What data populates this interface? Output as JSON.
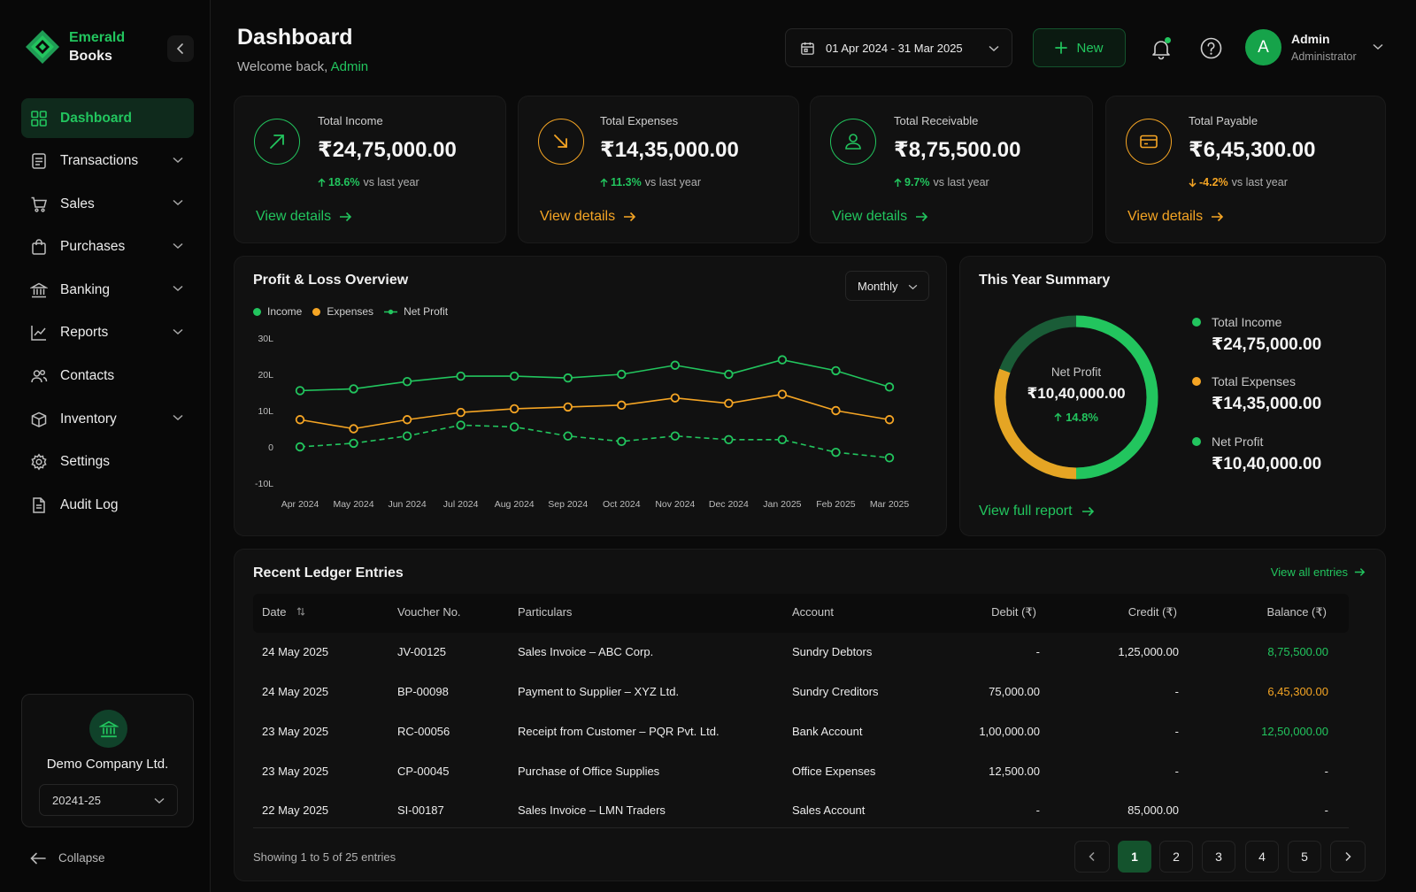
{
  "brand": {
    "line1": "Emerald",
    "line2": "Books"
  },
  "sidebar": {
    "items": [
      {
        "label": "Dashboard",
        "icon": "grid-icon",
        "active": true
      },
      {
        "label": "Transactions",
        "icon": "receipt-icon",
        "expandable": true
      },
      {
        "label": "Sales",
        "icon": "cart-icon",
        "expandable": true
      },
      {
        "label": "Purchases",
        "icon": "bag-icon",
        "expandable": true
      },
      {
        "label": "Banking",
        "icon": "bank-icon",
        "expandable": true
      },
      {
        "label": "Reports",
        "icon": "chart-line-icon",
        "expandable": true
      },
      {
        "label": "Contacts",
        "icon": "users-icon"
      },
      {
        "label": "Inventory",
        "icon": "box-icon",
        "expandable": true
      },
      {
        "label": "Settings",
        "icon": "gear-icon"
      },
      {
        "label": "Audit Log",
        "icon": "document-icon"
      }
    ],
    "company_name": "Demo Company Ltd.",
    "fiscal_year": "20241-25",
    "collapse_label": "Collapse"
  },
  "header": {
    "title": "Dashboard",
    "welcome_prefix": "Welcome back, ",
    "welcome_user": "Admin",
    "date_range": "01 Apr 2024 - 31 Mar 2025",
    "new_label": "New",
    "avatar_initial": "A",
    "user_name": "Admin",
    "user_role": "Administrator"
  },
  "kpis": [
    {
      "title": "Total Income",
      "value": "₹24,75,000.00",
      "delta": "18.6%",
      "delta_dir": "up",
      "suffix": "vs last year",
      "link": "View details",
      "accent": "#22c55e",
      "icon": "arrow-up-right-icon"
    },
    {
      "title": "Total Expenses",
      "value": "₹14,35,000.00",
      "delta": "11.3%",
      "delta_dir": "up",
      "suffix": "vs last year",
      "link": "View details",
      "accent": "#f5a524",
      "icon": "arrow-down-right-icon"
    },
    {
      "title": "Total Receivable",
      "value": "₹8,75,500.00",
      "delta": "9.7%",
      "delta_dir": "up",
      "suffix": "vs last year",
      "link": "View details",
      "accent": "#22c55e",
      "icon": "user-icon"
    },
    {
      "title": "Total Payable",
      "value": "₹6,45,300.00",
      "delta": "-4.2%",
      "delta_dir": "down",
      "suffix": "vs last year",
      "link": "View details",
      "accent": "#f5a524",
      "icon": "card-icon"
    }
  ],
  "pl": {
    "title": "Profit & Loss Overview",
    "period": "Monthly"
  },
  "chart_data": {
    "type": "line",
    "categories": [
      "Apr 2024",
      "May 2024",
      "Jun 2024",
      "Jul 2024",
      "Aug 2024",
      "Sep 2024",
      "Oct 2024",
      "Nov 2024",
      "Dec 2024",
      "Jan 2025",
      "Feb 2025",
      "Mar 2025"
    ],
    "series": [
      {
        "name": "Income",
        "color": "#22c55e",
        "values": [
          15.5,
          16,
          18,
          19.5,
          19.5,
          19,
          20,
          22.5,
          20,
          24,
          21,
          16.5
        ]
      },
      {
        "name": "Expenses",
        "color": "#f5a524",
        "values": [
          7.5,
          5,
          7.5,
          9.5,
          10.5,
          11,
          11.5,
          13.5,
          12,
          14.5,
          10,
          7.5
        ]
      },
      {
        "name": "Net Profit",
        "color": "#22c55e",
        "dashed": true,
        "values": [
          0,
          1,
          3,
          6,
          5.5,
          3,
          1.5,
          3,
          2,
          2,
          -1.5,
          -3
        ]
      }
    ],
    "yticks": [
      "30L",
      "20L",
      "10L",
      "0",
      "-10L"
    ],
    "ylim": [
      -10,
      30
    ],
    "grid": false,
    "legend": "top-left"
  },
  "summary": {
    "title": "This Year Summary",
    "center_label": "Net Profit",
    "center_value": "₹10,40,000.00",
    "center_delta": "14.8%",
    "items": [
      {
        "label": "Total Income",
        "value": "₹24,75,000.00",
        "color": "#22c55e"
      },
      {
        "label": "Total Expenses",
        "value": "₹14,35,000.00",
        "color": "#f5a524"
      },
      {
        "label": "Net Profit",
        "value": "₹10,40,000.00",
        "color": "#22c55e"
      }
    ],
    "expense_share": 0.42,
    "link": "View full report"
  },
  "ledger": {
    "title": "Recent Ledger Entries",
    "view_all": "View all entries",
    "columns": [
      "Date",
      "Voucher No.",
      "Particulars",
      "Account",
      "Debit (₹)",
      "Credit (₹)",
      "Balance (₹)"
    ],
    "rows": [
      {
        "date": "24 May 2025",
        "voucher": "JV-00125",
        "particulars": "Sales Invoice – ABC Corp.",
        "account": "Sundry Debtors",
        "debit": "-",
        "credit": "1,25,000.00",
        "balance": "8,75,500.00",
        "balance_color": "#22c55e"
      },
      {
        "date": "24 May 2025",
        "voucher": "BP-00098",
        "particulars": "Payment to Supplier – XYZ Ltd.",
        "account": "Sundry Creditors",
        "debit": "75,000.00",
        "credit": "-",
        "balance": "6,45,300.00",
        "balance_color": "#f5a524"
      },
      {
        "date": "23 May 2025",
        "voucher": "RC-00056",
        "particulars": "Receipt from Customer – PQR Pvt. Ltd.",
        "account": "Bank Account",
        "debit": "1,00,000.00",
        "credit": "-",
        "balance": "12,50,000.00",
        "balance_color": "#22c55e"
      },
      {
        "date": "23 May 2025",
        "voucher": "CP-00045",
        "particulars": "Purchase of Office Supplies",
        "account": "Office Expenses",
        "debit": "12,500.00",
        "credit": "-",
        "balance": "-",
        "balance_color": "#e8e8e8"
      },
      {
        "date": "22 May 2025",
        "voucher": "SI-00187",
        "particulars": "Sales Invoice – LMN Traders",
        "account": "Sales Account",
        "debit": "-",
        "credit": "85,000.00",
        "balance": "-",
        "balance_color": "#e8e8e8"
      }
    ],
    "showing": "Showing 1 to 5 of 25 entries",
    "pages": [
      "1",
      "2",
      "3",
      "4",
      "5"
    ],
    "current_page": "1"
  }
}
